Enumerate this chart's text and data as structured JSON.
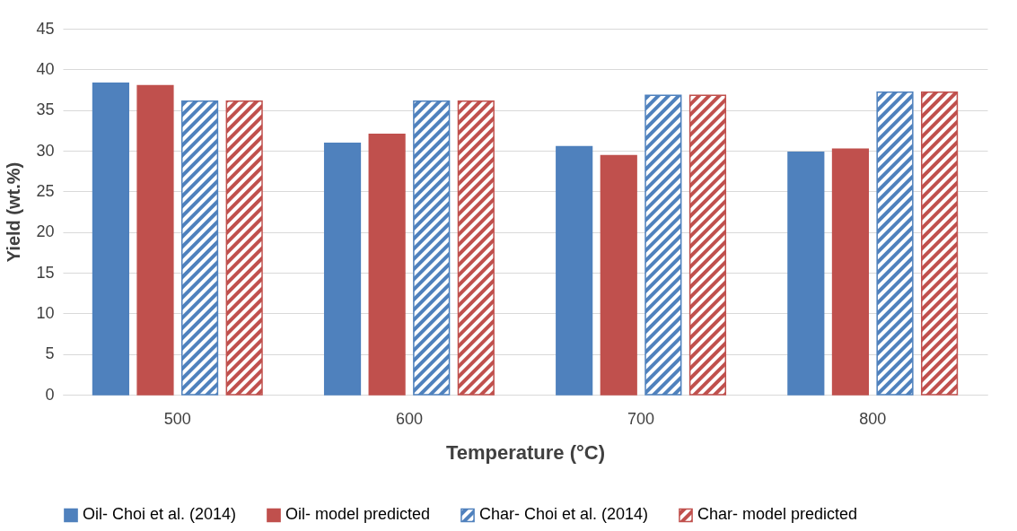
{
  "chart_data": {
    "type": "bar",
    "xlabel": "Temperature (°C)",
    "ylabel": "Yield (wt.%)",
    "categories": [
      "500",
      "600",
      "700",
      "800"
    ],
    "series": [
      {
        "name": "Oil- Choi et al. (2014)",
        "color": "#4f81bd",
        "values": [
          38.3,
          30.9,
          30.5,
          29.8
        ]
      },
      {
        "name": "Oil- model predicted",
        "color": "#c0504d",
        "values": [
          38.0,
          32.0,
          29.4,
          30.2
        ]
      },
      {
        "name": "Char- Choi et al. (2014)",
        "color": "#4f81bd",
        "values": [
          36.1,
          36.1,
          36.8,
          37.2
        ]
      },
      {
        "name": "Char- model predicted",
        "color": "#c0504d",
        "values": [
          36.1,
          36.1,
          36.8,
          37.2
        ]
      }
    ],
    "ylim": [
      0,
      45
    ],
    "yticks": [
      0,
      5,
      10,
      15,
      20,
      25,
      30,
      35,
      40,
      45
    ],
    "grid": "y",
    "legend": "bottom"
  }
}
